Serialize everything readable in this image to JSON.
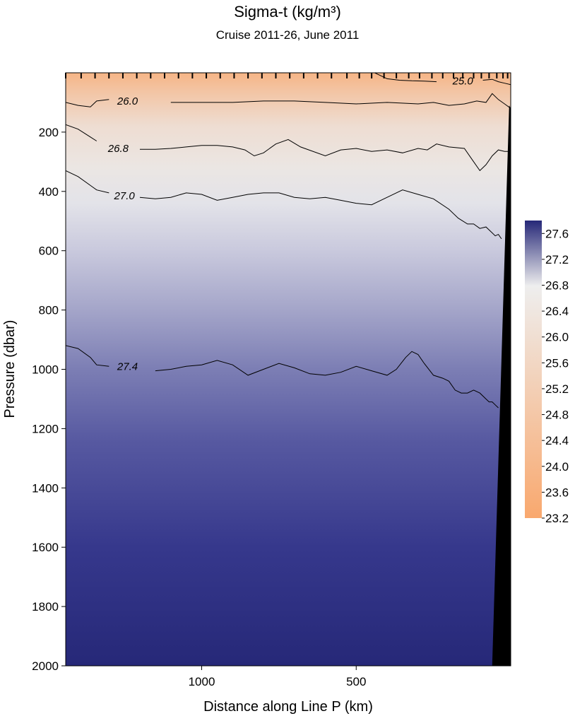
{
  "chart_data": {
    "type": "heatmap",
    "title": "Sigma-t  (kg/m³)",
    "subtitle": "Cruise 2011-26,  June 2011",
    "xlabel": "Distance along Line P  (km)",
    "ylabel": "Pressure  (dbar)",
    "x_axis": {
      "ticks": [
        "1000",
        "500"
      ],
      "tick_values": [
        1000,
        500
      ],
      "range_km": [
        1440,
        0
      ],
      "reversed": true
    },
    "y_axis": {
      "ticks": [
        "200",
        "400",
        "600",
        "800",
        "1000",
        "1200",
        "1400",
        "1600",
        "1800",
        "2000"
      ],
      "range_dbar": [
        0,
        2000
      ],
      "inverted": true
    },
    "colorbar": {
      "ticks": [
        "27.6",
        "27.2",
        "26.8",
        "26.4",
        "26.0",
        "25.6",
        "25.2",
        "24.8",
        "24.4",
        "24.0",
        "23.6",
        "23.2"
      ],
      "range": [
        23.2,
        27.8
      ],
      "colors": {
        "low": "#F9A86E",
        "mid": "#EEEEEE",
        "high": "#262878"
      }
    },
    "station_markers_km": [
      1440,
      1390,
      1345,
      1300,
      1255,
      1210,
      1165,
      1120,
      1075,
      1030,
      985,
      940,
      895,
      850,
      805,
      760,
      715,
      670,
      625,
      580,
      530,
      490,
      450,
      410,
      370,
      330,
      295,
      255,
      220,
      185,
      155,
      120,
      95,
      70,
      45,
      25,
      10
    ],
    "contours": [
      {
        "label": "25.0",
        "label_x_km": 155,
        "x": [
          440,
          400,
          360,
          320,
          280,
          240,
          200,
          160,
          120,
          90,
          60,
          40,
          20,
          0
        ],
        "y": [
          0,
          20,
          25,
          27,
          28,
          30,
          30,
          28,
          25,
          25,
          22,
          30,
          35,
          40
        ]
      },
      {
        "label": "26.0",
        "label_x_km": 1240,
        "x": [
          1440,
          1400,
          1360,
          1340,
          1300,
          1200,
          1100,
          1000,
          900,
          800,
          700,
          600,
          500,
          400,
          300,
          250,
          200,
          150,
          110,
          80,
          60,
          40,
          20,
          0
        ],
        "y": [
          100,
          110,
          115,
          95,
          90,
          95,
          100,
          100,
          100,
          95,
          95,
          100,
          105,
          100,
          105,
          100,
          110,
          105,
          95,
          100,
          70,
          90,
          105,
          120
        ]
      },
      {
        "label": "26.8",
        "label_x_km": 1270,
        "x": [
          1440,
          1400,
          1340,
          1300,
          1250,
          1200,
          1150,
          1100,
          1050,
          1000,
          950,
          900,
          860,
          830,
          800,
          760,
          720,
          680,
          600,
          550,
          500,
          450,
          400,
          350,
          300,
          270,
          240,
          200,
          150,
          120,
          100,
          80,
          60,
          40,
          20,
          0
        ],
        "y": [
          175,
          190,
          230,
          255,
          255,
          258,
          258,
          255,
          250,
          245,
          245,
          250,
          260,
          280,
          270,
          240,
          225,
          250,
          280,
          260,
          255,
          265,
          260,
          270,
          255,
          260,
          240,
          250,
          255,
          300,
          330,
          310,
          280,
          260,
          265,
          265
        ]
      },
      {
        "label": "27.0",
        "label_x_km": 1250,
        "x": [
          1440,
          1400,
          1360,
          1340,
          1300,
          1250,
          1200,
          1150,
          1100,
          1050,
          1000,
          950,
          900,
          850,
          800,
          750,
          700,
          650,
          600,
          550,
          500,
          450,
          400,
          350,
          300,
          250,
          200,
          170,
          140,
          120,
          100,
          80,
          60,
          50,
          40,
          30
        ],
        "y": [
          330,
          350,
          380,
          395,
          405,
          415,
          420,
          425,
          420,
          405,
          410,
          430,
          420,
          410,
          405,
          405,
          420,
          425,
          420,
          430,
          440,
          445,
          420,
          395,
          410,
          425,
          460,
          490,
          510,
          510,
          525,
          520,
          540,
          550,
          545,
          560
        ]
      },
      {
        "label": "27.4",
        "label_x_km": 1240,
        "x": [
          1440,
          1400,
          1360,
          1340,
          1300,
          1250,
          1200,
          1150,
          1100,
          1050,
          1000,
          950,
          900,
          850,
          800,
          750,
          700,
          650,
          600,
          550,
          500,
          450,
          400,
          370,
          340,
          320,
          300,
          280,
          250,
          220,
          200,
          180,
          160,
          140,
          120,
          100,
          80,
          70,
          60,
          50,
          40
        ],
        "y": [
          920,
          930,
          960,
          985,
          990,
          990,
          995,
          1005,
          1000,
          990,
          985,
          970,
          985,
          1020,
          1000,
          980,
          995,
          1015,
          1020,
          1010,
          990,
          1005,
          1020,
          1000,
          960,
          940,
          950,
          980,
          1020,
          1030,
          1040,
          1070,
          1080,
          1080,
          1070,
          1080,
          1100,
          1110,
          1110,
          1120,
          1130
        ]
      }
    ],
    "bottom_edge_km_at_surface": 5,
    "bottom_edge_km_at_2000": 60,
    "bottom_top_dbar": 110
  }
}
